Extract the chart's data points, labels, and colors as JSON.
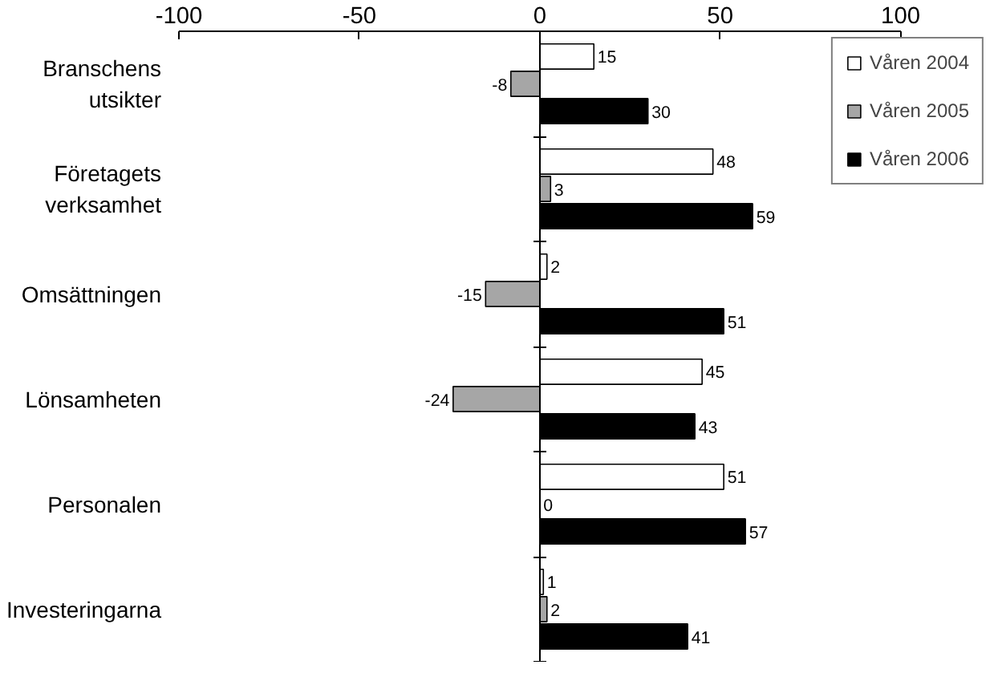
{
  "chart_data": {
    "type": "bar",
    "orientation": "horizontal",
    "categories": [
      "Branschens utsikter",
      "Företagets verksamhet",
      "Omsättningen",
      "Lönsamheten",
      "Personalen",
      "Investeringarna"
    ],
    "series": [
      {
        "name": "Våren 2004",
        "color": "#ffffff",
        "values": [
          15,
          48,
          2,
          45,
          51,
          1
        ]
      },
      {
        "name": "Våren 2005",
        "color": "#a6a6a6",
        "values": [
          -8,
          3,
          -15,
          -24,
          0,
          2
        ]
      },
      {
        "name": "Våren 2006",
        "color": "#000000",
        "values": [
          30,
          59,
          51,
          43,
          57,
          41
        ]
      }
    ],
    "xlim": [
      -100,
      100
    ],
    "xticks": [
      -100,
      -50,
      0,
      50,
      100
    ],
    "data_labels": true,
    "legend": "top right"
  }
}
